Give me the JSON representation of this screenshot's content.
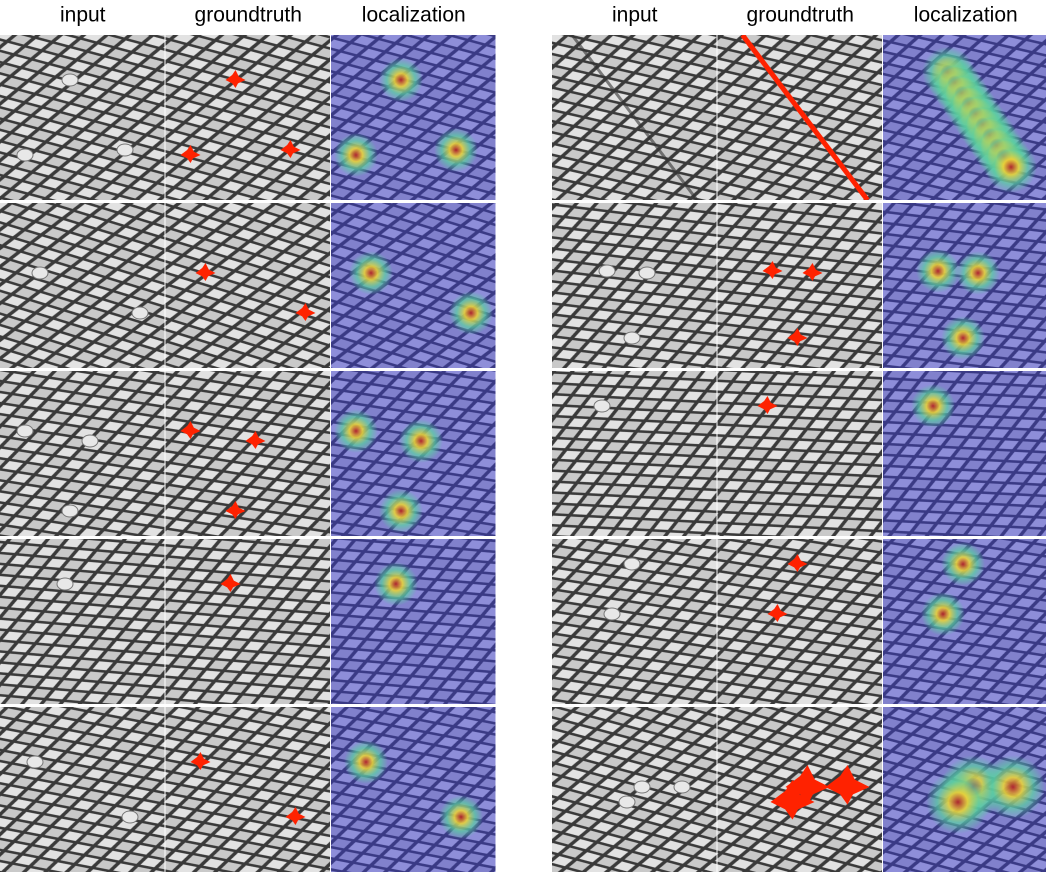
{
  "panels": [
    {
      "headers": [
        "input",
        "groundtruth",
        "localization"
      ]
    },
    {
      "headers": [
        "input",
        "groundtruth",
        "localization"
      ]
    }
  ]
}
